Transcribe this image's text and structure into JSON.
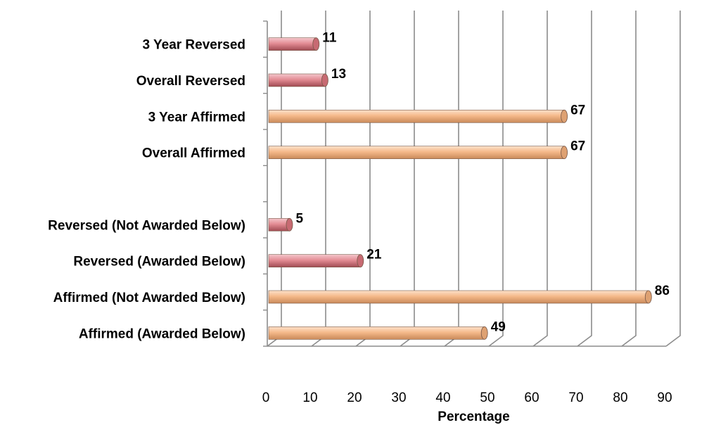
{
  "chart_data": {
    "type": "bar",
    "orientation": "horizontal",
    "categories": [
      "3 Year Reversed",
      "Overall Reversed",
      "3 Year Affirmed",
      "Overall Affirmed",
      "",
      "Reversed (Not Awarded Below)",
      "Reversed (Awarded Below)",
      "Affirmed (Not Awarded Below)",
      "Affirmed (Awarded Below)"
    ],
    "values": [
      11,
      13,
      67,
      67,
      null,
      5,
      21,
      86,
      49
    ],
    "value_labels": [
      "11",
      "13",
      "67",
      "67",
      "",
      "5",
      "21",
      "86",
      "49"
    ],
    "bar_colors": [
      "#e38c94",
      "#e38c94",
      "#f5b98a",
      "#f5b98a",
      "",
      "#e38c94",
      "#e38c94",
      "#f5b98a",
      "#f5b98a"
    ],
    "xlim": [
      0,
      90
    ],
    "x_ticks": [
      "0",
      "10",
      "20",
      "30",
      "40",
      "50",
      "60",
      "70",
      "80",
      "90"
    ],
    "xlabel": "Percentage",
    "ylabel": "",
    "title": "",
    "grid": "vertical",
    "style": "3d-cylinder"
  }
}
